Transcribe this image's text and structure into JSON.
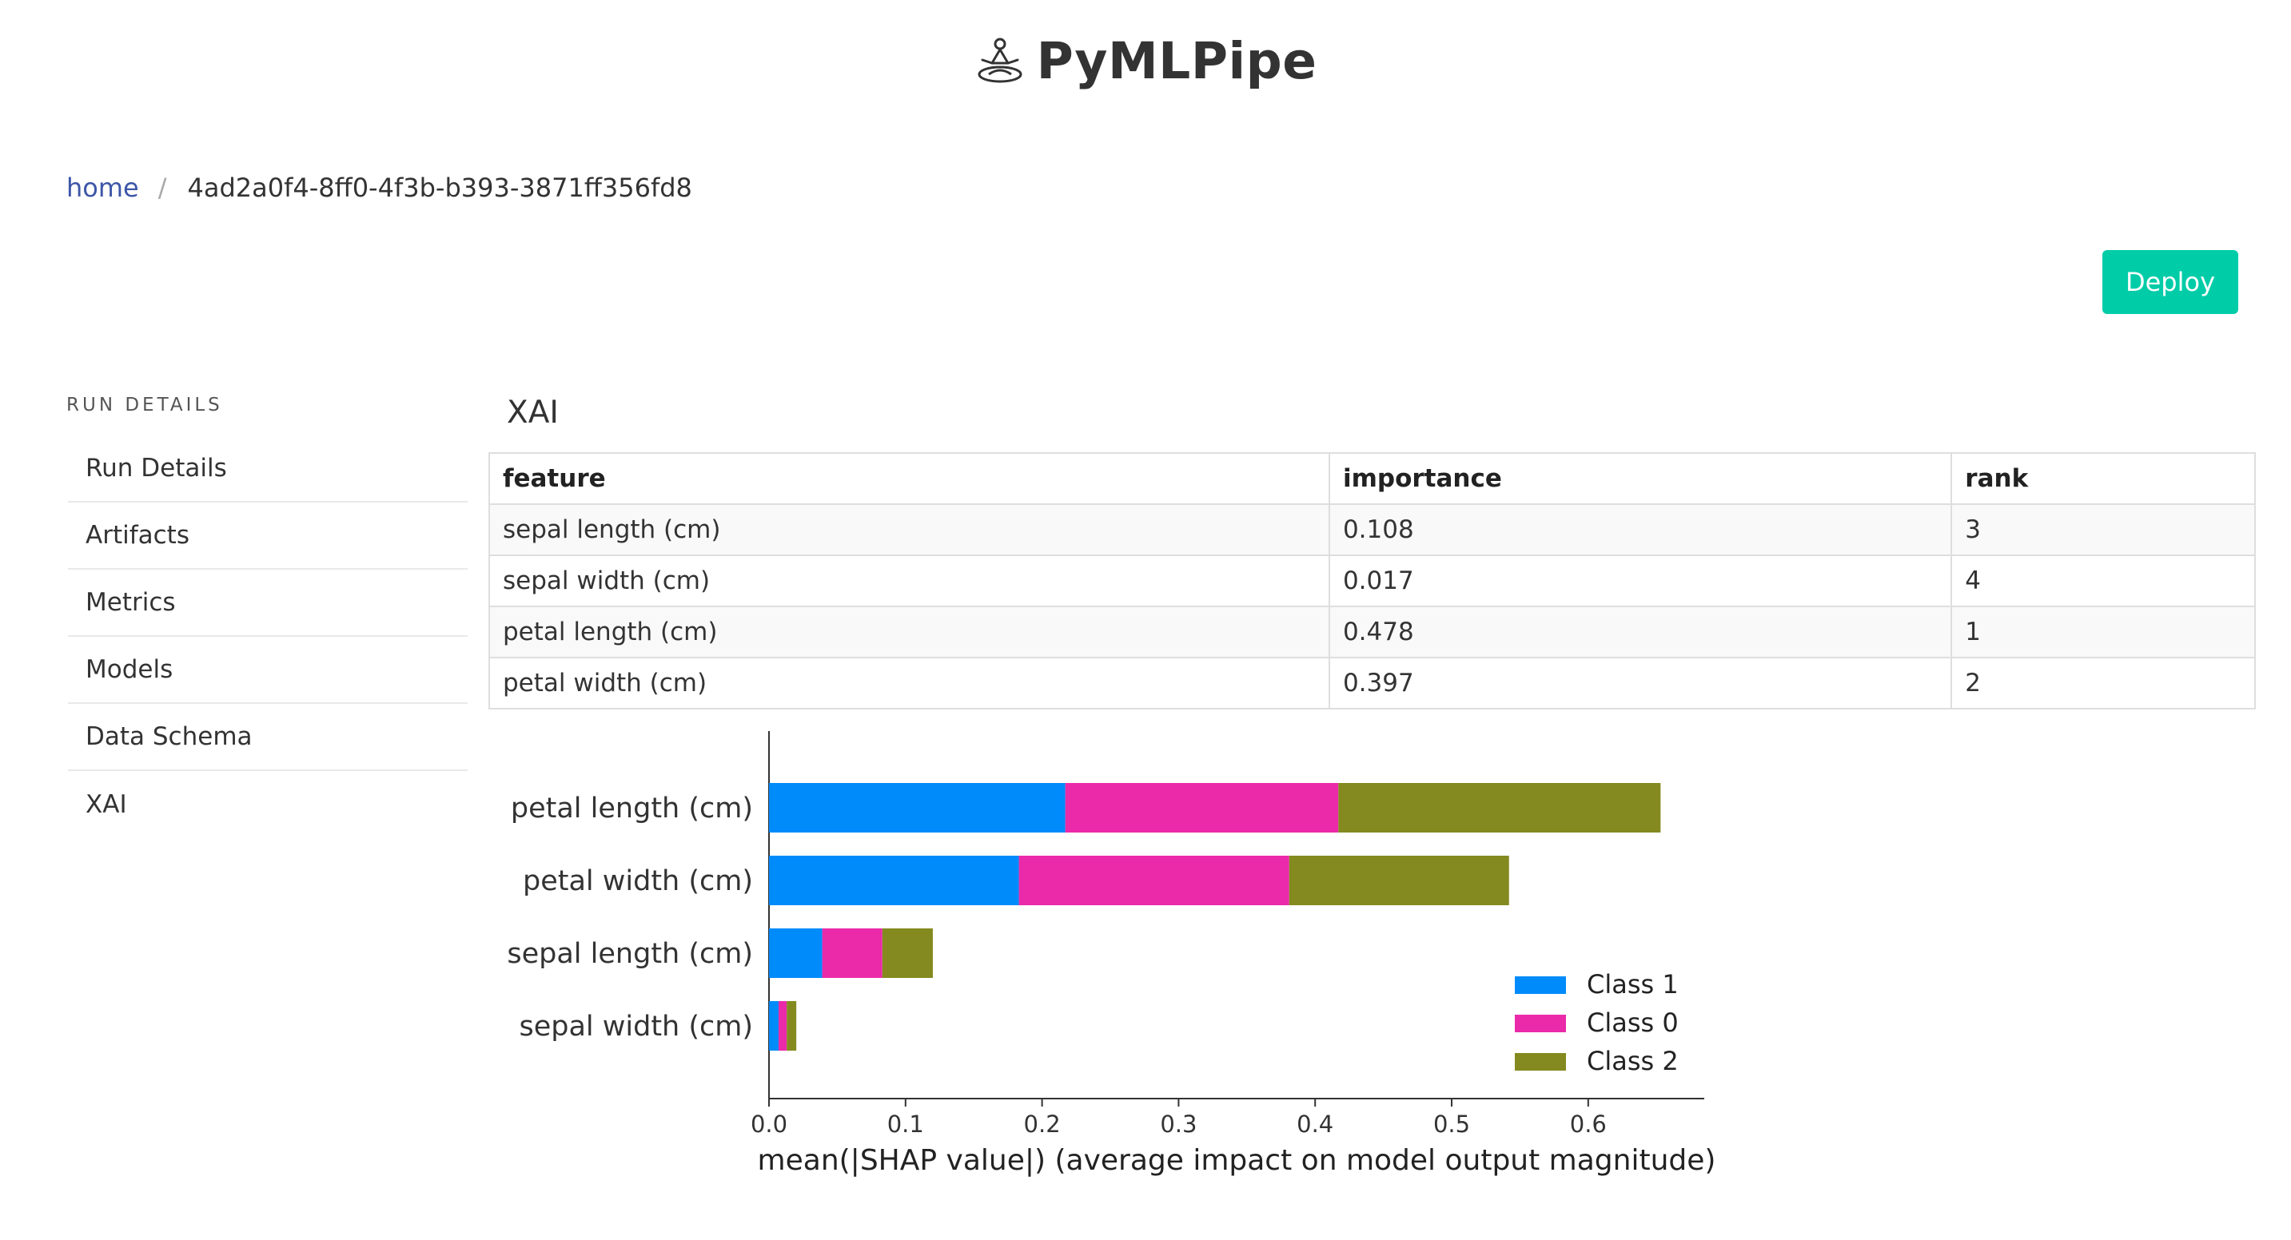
{
  "app": {
    "title": "PyMLPipe"
  },
  "breadcrumb": {
    "home": "home",
    "separator": "/",
    "current": "4ad2a0f4-8ff0-4f3b-b393-3871ff356fd8"
  },
  "actions": {
    "deploy": "Deploy"
  },
  "sidebar": {
    "heading": "RUN DETAILS",
    "items": [
      {
        "label": "Run Details"
      },
      {
        "label": "Artifacts"
      },
      {
        "label": "Metrics"
      },
      {
        "label": "Models"
      },
      {
        "label": "Data Schema"
      },
      {
        "label": "XAI"
      }
    ]
  },
  "section": {
    "title": "XAI"
  },
  "table": {
    "headers": [
      "feature",
      "importance",
      "rank"
    ],
    "rows": [
      [
        "sepal length (cm)",
        "0.108",
        "3"
      ],
      [
        "sepal width (cm)",
        "0.017",
        "4"
      ],
      [
        "petal length (cm)",
        "0.478",
        "1"
      ],
      [
        "petal width (cm)",
        "0.397",
        "2"
      ]
    ]
  },
  "colors": {
    "accent": "#00cca8",
    "link": "#3d56a8"
  },
  "chart_data": {
    "type": "bar",
    "orientation": "horizontal",
    "stacked": true,
    "categories": [
      "petal length (cm)",
      "petal width (cm)",
      "sepal length (cm)",
      "sepal width (cm)"
    ],
    "series": [
      {
        "name": "Class 1",
        "color": "#008bfb",
        "values": [
          0.217,
          0.183,
          0.039,
          0.007
        ]
      },
      {
        "name": "Class 0",
        "color": "#ea2aa9",
        "values": [
          0.2,
          0.198,
          0.044,
          0.006
        ]
      },
      {
        "name": "Class 2",
        "color": "#848a1f",
        "values": [
          0.236,
          0.161,
          0.037,
          0.007
        ]
      }
    ],
    "xlabel": "mean(|SHAP value|) (average impact on model output magnitude)",
    "xticks": [
      "0.0",
      "0.1",
      "0.2",
      "0.3",
      "0.4",
      "0.5",
      "0.6"
    ],
    "xlim": [
      0,
      0.685
    ],
    "legend_position": "lower-right",
    "grid": false
  }
}
